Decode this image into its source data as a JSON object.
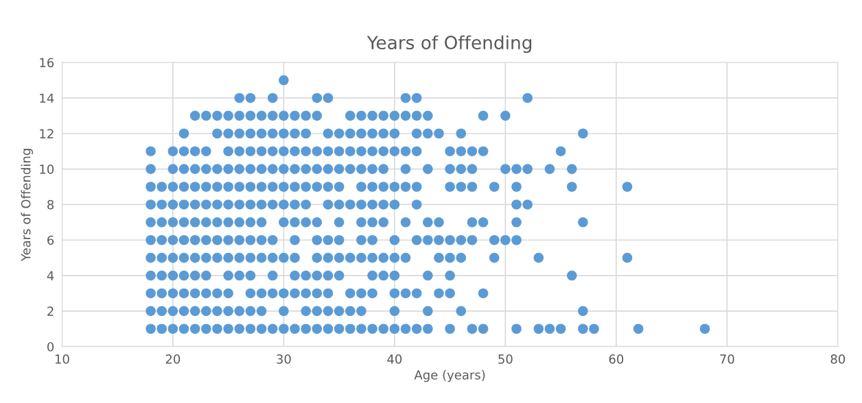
{
  "chart_data": {
    "type": "scatter",
    "title": "Years of Offending",
    "xlabel": "Age (years)",
    "ylabel": "Years of Offending",
    "xlim": [
      10,
      80
    ],
    "xticks": [
      10,
      20,
      30,
      40,
      50,
      60,
      70,
      80
    ],
    "ylim": [
      0,
      16
    ],
    "yticks": [
      0,
      2,
      4,
      6,
      8,
      10,
      12,
      14,
      16
    ],
    "grid": true,
    "marker": "circle",
    "series": [
      {
        "color": "#5b9bd5",
        "x": [
          18,
          19,
          20,
          21,
          22,
          23,
          24,
          25,
          26,
          27,
          28,
          29,
          30,
          31,
          32,
          33,
          34,
          35,
          36,
          37,
          38,
          39,
          40,
          41,
          42,
          43,
          45,
          47,
          48,
          51,
          53,
          54,
          55,
          57,
          58,
          62,
          68,
          18,
          19,
          20,
          21,
          22,
          23,
          24,
          25,
          26,
          27,
          28,
          30,
          32,
          33,
          34,
          35,
          36,
          37,
          40,
          43,
          46,
          57,
          18,
          19,
          20,
          21,
          22,
          23,
          24,
          25,
          27,
          28,
          29,
          30,
          31,
          32,
          33,
          34,
          36,
          37,
          38,
          40,
          41,
          42,
          44,
          45,
          48,
          18,
          19,
          20,
          21,
          22,
          23,
          25,
          26,
          27,
          29,
          31,
          32,
          33,
          34,
          35,
          38,
          39,
          40,
          43,
          45,
          56,
          18,
          19,
          20,
          21,
          22,
          23,
          24,
          25,
          26,
          27,
          28,
          29,
          30,
          31,
          33,
          34,
          35,
          36,
          37,
          38,
          39,
          40,
          41,
          44,
          45,
          46,
          49,
          53,
          61,
          18,
          19,
          20,
          21,
          22,
          23,
          24,
          25,
          26,
          27,
          28,
          29,
          31,
          33,
          34,
          35,
          37,
          38,
          40,
          42,
          43,
          44,
          45,
          46,
          47,
          49,
          50,
          51,
          18,
          19,
          20,
          21,
          22,
          23,
          24,
          25,
          26,
          27,
          28,
          30,
          31,
          32,
          33,
          35,
          37,
          38,
          39,
          41,
          43,
          44,
          47,
          48,
          51,
          57,
          18,
          19,
          20,
          21,
          22,
          23,
          24,
          25,
          26,
          27,
          28,
          29,
          30,
          31,
          32,
          34,
          35,
          36,
          37,
          38,
          39,
          40,
          42,
          51,
          52,
          18,
          19,
          20,
          21,
          22,
          23,
          24,
          25,
          26,
          27,
          28,
          29,
          30,
          31,
          32,
          33,
          34,
          35,
          37,
          38,
          39,
          40,
          41,
          42,
          45,
          46,
          47,
          49,
          51,
          56,
          61,
          18,
          20,
          21,
          22,
          23,
          24,
          25,
          26,
          27,
          28,
          29,
          30,
          31,
          32,
          33,
          34,
          35,
          36,
          37,
          38,
          39,
          41,
          43,
          45,
          46,
          47,
          50,
          51,
          52,
          54,
          56,
          18,
          20,
          21,
          22,
          23,
          25,
          26,
          27,
          28,
          29,
          30,
          31,
          32,
          33,
          34,
          35,
          36,
          37,
          38,
          39,
          40,
          41,
          42,
          45,
          46,
          47,
          48,
          55,
          21,
          24,
          25,
          26,
          27,
          28,
          29,
          30,
          31,
          32,
          34,
          35,
          36,
          37,
          38,
          39,
          40,
          42,
          43,
          44,
          46,
          57,
          22,
          23,
          24,
          25,
          26,
          27,
          28,
          29,
          30,
          31,
          32,
          33,
          36,
          37,
          38,
          39,
          40,
          41,
          42,
          43,
          48,
          50,
          26,
          27,
          29,
          33,
          34,
          41,
          42,
          52,
          30
        ],
        "values": [
          1,
          1,
          1,
          1,
          1,
          1,
          1,
          1,
          1,
          1,
          1,
          1,
          1,
          1,
          1,
          1,
          1,
          1,
          1,
          1,
          1,
          1,
          1,
          1,
          1,
          1,
          1,
          1,
          1,
          1,
          1,
          1,
          1,
          1,
          1,
          1,
          1,
          2,
          2,
          2,
          2,
          2,
          2,
          2,
          2,
          2,
          2,
          2,
          2,
          2,
          2,
          2,
          2,
          2,
          2,
          2,
          2,
          2,
          2,
          3,
          3,
          3,
          3,
          3,
          3,
          3,
          3,
          3,
          3,
          3,
          3,
          3,
          3,
          3,
          3,
          3,
          3,
          3,
          3,
          3,
          3,
          3,
          3,
          3,
          4,
          4,
          4,
          4,
          4,
          4,
          4,
          4,
          4,
          4,
          4,
          4,
          4,
          4,
          4,
          4,
          4,
          4,
          4,
          4,
          4,
          5,
          5,
          5,
          5,
          5,
          5,
          5,
          5,
          5,
          5,
          5,
          5,
          5,
          5,
          5,
          5,
          5,
          5,
          5,
          5,
          5,
          5,
          5,
          5,
          5,
          5,
          5,
          5,
          5,
          6,
          6,
          6,
          6,
          6,
          6,
          6,
          6,
          6,
          6,
          6,
          6,
          6,
          6,
          6,
          6,
          6,
          6,
          6,
          6,
          6,
          6,
          6,
          6,
          6,
          6,
          6,
          6,
          7,
          7,
          7,
          7,
          7,
          7,
          7,
          7,
          7,
          7,
          7,
          7,
          7,
          7,
          7,
          7,
          7,
          7,
          7,
          7,
          7,
          7,
          7,
          7,
          7,
          7,
          8,
          8,
          8,
          8,
          8,
          8,
          8,
          8,
          8,
          8,
          8,
          8,
          8,
          8,
          8,
          8,
          8,
          8,
          8,
          8,
          8,
          8,
          8,
          8,
          8,
          9,
          9,
          9,
          9,
          9,
          9,
          9,
          9,
          9,
          9,
          9,
          9,
          9,
          9,
          9,
          9,
          9,
          9,
          9,
          9,
          9,
          9,
          9,
          9,
          9,
          9,
          9,
          9,
          9,
          9,
          9,
          10,
          10,
          10,
          10,
          10,
          10,
          10,
          10,
          10,
          10,
          10,
          10,
          10,
          10,
          10,
          10,
          10,
          10,
          10,
          10,
          10,
          10,
          10,
          10,
          10,
          10,
          10,
          10,
          10,
          10,
          10,
          11,
          11,
          11,
          11,
          11,
          11,
          11,
          11,
          11,
          11,
          11,
          11,
          11,
          11,
          11,
          11,
          11,
          11,
          11,
          11,
          11,
          11,
          11,
          11,
          11,
          11,
          11,
          11,
          12,
          12,
          12,
          12,
          12,
          12,
          12,
          12,
          12,
          12,
          12,
          12,
          12,
          12,
          12,
          12,
          12,
          12,
          12,
          12,
          12,
          12,
          13,
          13,
          13,
          13,
          13,
          13,
          13,
          13,
          13,
          13,
          13,
          13,
          13,
          13,
          13,
          13,
          13,
          13,
          13,
          13,
          13,
          13,
          14,
          14,
          14,
          14,
          14,
          14,
          14,
          14,
          15
        ]
      }
    ]
  }
}
